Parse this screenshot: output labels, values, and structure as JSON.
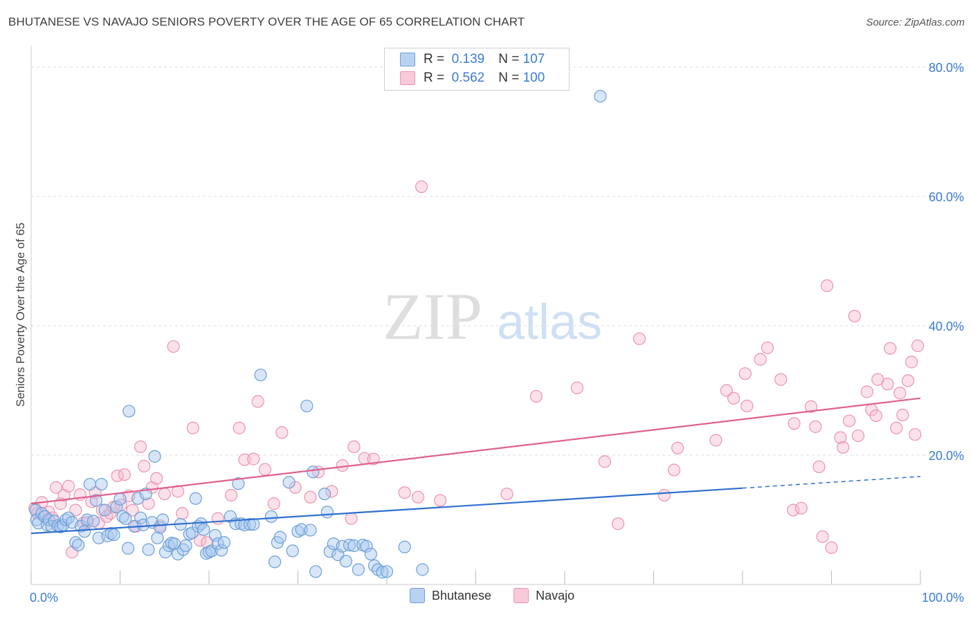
{
  "title": "BHUTANESE VS NAVAJO SENIORS POVERTY OVER THE AGE OF 65 CORRELATION CHART",
  "source": "Source: ZipAtlas.com",
  "watermark": {
    "zip": "ZIP",
    "atlas": "atlas"
  },
  "legend": {
    "rows": [
      {
        "r_label": "R =",
        "r_value": "0.139",
        "n_label": "N =",
        "n_value": "107"
      },
      {
        "r_label": "R =",
        "r_value": "0.562",
        "n_label": "N =",
        "n_value": "100"
      }
    ]
  },
  "bottom_legend": [
    "Bhutanese",
    "Navajo"
  ],
  "colors": {
    "bhutanese_fill": "#a9c8ef",
    "bhutanese_stroke": "#6a9fd8",
    "bhutanese_line": "#2f6fcf",
    "navajo_fill": "#f6bdd0",
    "navajo_stroke": "#ec93b0",
    "navajo_line": "#e0608f",
    "tick_label": "#3a7bd5",
    "grid": "#dddddd"
  },
  "chart_data": {
    "type": "scatter",
    "title": "BHUTANESE VS NAVAJO SENIORS POVERTY OVER THE AGE OF 65 CORRELATION CHART",
    "xlabel": "",
    "ylabel": "Seniors Poverty Over the Age of 65",
    "xlim": [
      0,
      100
    ],
    "ylim": [
      0,
      80
    ],
    "x_tick_labels": [
      "0.0%",
      "100.0%"
    ],
    "y_ticks": [
      20,
      40,
      60,
      80
    ],
    "y_tick_labels": [
      "20.0%",
      "40.0%",
      "60.0%",
      "80.0%"
    ],
    "grid": true,
    "legend_position": "top-center",
    "series": [
      {
        "name": "Bhutanese",
        "R": 0.139,
        "N": 107,
        "trend": {
          "x0": 0,
          "y0": 7.9,
          "x1": 80,
          "y1": 14.9,
          "dashed_to": 100,
          "dashed_y": 16.7
        },
        "points": [
          [
            0.5,
            11.5
          ],
          [
            0.6,
            10
          ],
          [
            0.8,
            9.5
          ],
          [
            1.2,
            11
          ],
          [
            1.5,
            10.5
          ],
          [
            1.8,
            9.2
          ],
          [
            2,
            10
          ],
          [
            2.3,
            9
          ],
          [
            2.6,
            9.8
          ],
          [
            3,
            9.1
          ],
          [
            3.3,
            8.9
          ],
          [
            3.6,
            9.2
          ],
          [
            3.9,
            10
          ],
          [
            4.2,
            10.3
          ],
          [
            4.6,
            9.6
          ],
          [
            5,
            6.5
          ],
          [
            5.3,
            6.1
          ],
          [
            5.6,
            9
          ],
          [
            6,
            8.2
          ],
          [
            6.3,
            10
          ],
          [
            6.6,
            15.5
          ],
          [
            7,
            9.8
          ],
          [
            7.3,
            13
          ],
          [
            7.6,
            7.2
          ],
          [
            7.9,
            15.5
          ],
          [
            8.3,
            11.5
          ],
          [
            8.6,
            7.5
          ],
          [
            9,
            7.9
          ],
          [
            9.3,
            7.7
          ],
          [
            9.6,
            12
          ],
          [
            10,
            13.2
          ],
          [
            10.3,
            10.5
          ],
          [
            10.6,
            10.2
          ],
          [
            10.9,
            5.6
          ],
          [
            11,
            26.8
          ],
          [
            11.6,
            9
          ],
          [
            12,
            13.3
          ],
          [
            12.3,
            10.3
          ],
          [
            12.6,
            9.2
          ],
          [
            12.9,
            14
          ],
          [
            13.2,
            5.4
          ],
          [
            13.6,
            9.6
          ],
          [
            13.9,
            19.8
          ],
          [
            14.2,
            7.2
          ],
          [
            14.5,
            8.8
          ],
          [
            14.8,
            10
          ],
          [
            15.1,
            5
          ],
          [
            15.5,
            6
          ],
          [
            15.8,
            6.4
          ],
          [
            16.1,
            6.3
          ],
          [
            16.5,
            4.7
          ],
          [
            16.8,
            9.3
          ],
          [
            17.1,
            5.4
          ],
          [
            17.4,
            6
          ],
          [
            17.8,
            7.8
          ],
          [
            18.1,
            8
          ],
          [
            18.5,
            13.3
          ],
          [
            18.8,
            9
          ],
          [
            19.1,
            9.4
          ],
          [
            19.4,
            8.5
          ],
          [
            19.7,
            4.8
          ],
          [
            20,
            5
          ],
          [
            20.3,
            5.2
          ],
          [
            20.7,
            7.6
          ],
          [
            21,
            6.3
          ],
          [
            21.4,
            5.3
          ],
          [
            21.7,
            6.5
          ],
          [
            22.4,
            10.5
          ],
          [
            23,
            9.4
          ],
          [
            23.3,
            15.6
          ],
          [
            23.6,
            9.4
          ],
          [
            24,
            9.2
          ],
          [
            24.6,
            9.3
          ],
          [
            25,
            9.3
          ],
          [
            25.8,
            32.4
          ],
          [
            27,
            10.5
          ],
          [
            27.4,
            3.5
          ],
          [
            27.7,
            6.5
          ],
          [
            28,
            7.3
          ],
          [
            29,
            15.8
          ],
          [
            29.4,
            5.2
          ],
          [
            30,
            8.2
          ],
          [
            30.4,
            8.5
          ],
          [
            31,
            27.6
          ],
          [
            31.4,
            8.4
          ],
          [
            31.7,
            17.4
          ],
          [
            32,
            2
          ],
          [
            33,
            14
          ],
          [
            33.3,
            11.2
          ],
          [
            33.6,
            5.1
          ],
          [
            34,
            6.3
          ],
          [
            34.5,
            4.6
          ],
          [
            35,
            5.9
          ],
          [
            35.4,
            3.6
          ],
          [
            35.8,
            6.1
          ],
          [
            36.3,
            6
          ],
          [
            36.8,
            2.3
          ],
          [
            37.3,
            6.1
          ],
          [
            37.7,
            5.9
          ],
          [
            38.2,
            4.7
          ],
          [
            38.6,
            2.9
          ],
          [
            39,
            2.3
          ],
          [
            39.5,
            1.9
          ],
          [
            40,
            2
          ],
          [
            42,
            5.8
          ],
          [
            44,
            2.3
          ],
          [
            64,
            75.5
          ]
        ]
      },
      {
        "name": "Navajo",
        "R": 0.562,
        "N": 100,
        "trend": {
          "x0": 0,
          "y0": 12.5,
          "x1": 100,
          "y1": 28.8
        },
        "points": [
          [
            0.4,
            11.8
          ],
          [
            0.7,
            11
          ],
          [
            1.2,
            12.7
          ],
          [
            1.6,
            10.5
          ],
          [
            2,
            11.2
          ],
          [
            2.4,
            10.3
          ],
          [
            2.8,
            15
          ],
          [
            3.3,
            12.5
          ],
          [
            3.7,
            13.8
          ],
          [
            4.2,
            15.2
          ],
          [
            4.6,
            5
          ],
          [
            5,
            11.5
          ],
          [
            5.5,
            13.9
          ],
          [
            5.9,
            9.5
          ],
          [
            6.3,
            9.6
          ],
          [
            6.8,
            12.8
          ],
          [
            7.2,
            14.2
          ],
          [
            7.6,
            9.5
          ],
          [
            8,
            11.5
          ],
          [
            8.5,
            10.5
          ],
          [
            8.9,
            11
          ],
          [
            9.3,
            12
          ],
          [
            9.7,
            16.8
          ],
          [
            10.1,
            12.3
          ],
          [
            10.5,
            17
          ],
          [
            11,
            13.7
          ],
          [
            11.4,
            11.5
          ],
          [
            11.8,
            9
          ],
          [
            12.3,
            21.3
          ],
          [
            12.7,
            18.3
          ],
          [
            13.2,
            12.5
          ],
          [
            13.6,
            15
          ],
          [
            14.1,
            16.4
          ],
          [
            14.5,
            9.1
          ],
          [
            15,
            14
          ],
          [
            16,
            36.8
          ],
          [
            16.5,
            14.4
          ],
          [
            17,
            11
          ],
          [
            18.2,
            24.2
          ],
          [
            19,
            6.8
          ],
          [
            19.8,
            6.5
          ],
          [
            21,
            10.2
          ],
          [
            22.5,
            13.8
          ],
          [
            23.4,
            24.2
          ],
          [
            24,
            19.3
          ],
          [
            25,
            19.4
          ],
          [
            25.5,
            28.3
          ],
          [
            26.3,
            17.8
          ],
          [
            27.3,
            12.5
          ],
          [
            28.2,
            23.5
          ],
          [
            29.7,
            15
          ],
          [
            31.4,
            13.5
          ],
          [
            32.3,
            17.4
          ],
          [
            33.8,
            14.4
          ],
          [
            35,
            18.4
          ],
          [
            36,
            10.2
          ],
          [
            36.3,
            21.3
          ],
          [
            37.5,
            19.5
          ],
          [
            38.5,
            19.4
          ],
          [
            42,
            14.2
          ],
          [
            43.5,
            13.5
          ],
          [
            43.9,
            61.5
          ],
          [
            46,
            13
          ],
          [
            53.5,
            14
          ],
          [
            56.8,
            29.1
          ],
          [
            61.4,
            30.4
          ],
          [
            64.5,
            19
          ],
          [
            66,
            9.4
          ],
          [
            68.4,
            38
          ],
          [
            71.2,
            13.8
          ],
          [
            72.3,
            17.7
          ],
          [
            72.7,
            21.1
          ],
          [
            77,
            22.3
          ],
          [
            78.2,
            30
          ],
          [
            79,
            28.8
          ],
          [
            80.3,
            32.6
          ],
          [
            80.5,
            27.6
          ],
          [
            82,
            34.8
          ],
          [
            82.8,
            36.6
          ],
          [
            84.3,
            31.7
          ],
          [
            85.7,
            11.5
          ],
          [
            85.8,
            24.9
          ],
          [
            86.6,
            11.8
          ],
          [
            87.7,
            27.5
          ],
          [
            88.2,
            24.4
          ],
          [
            88.6,
            18.2
          ],
          [
            89,
            7.4
          ],
          [
            89.5,
            46.2
          ],
          [
            90,
            5.7
          ],
          [
            91,
            22.7
          ],
          [
            91.3,
            21.2
          ],
          [
            92,
            25.3
          ],
          [
            92.6,
            41.5
          ],
          [
            93,
            23
          ],
          [
            94,
            29.8
          ],
          [
            94.5,
            27
          ],
          [
            95,
            26.1
          ],
          [
            96.3,
            31
          ],
          [
            96.6,
            36.5
          ],
          [
            97.7,
            29.6
          ]
        ]
      }
    ],
    "extra_navajo_points": [
      [
        95.2,
        31.7
      ],
      [
        97.3,
        24.2
      ],
      [
        98,
        26.2
      ],
      [
        98.6,
        31.5
      ],
      [
        99,
        34.4
      ],
      [
        99.4,
        23.2
      ],
      [
        99.7,
        36.9
      ]
    ]
  }
}
